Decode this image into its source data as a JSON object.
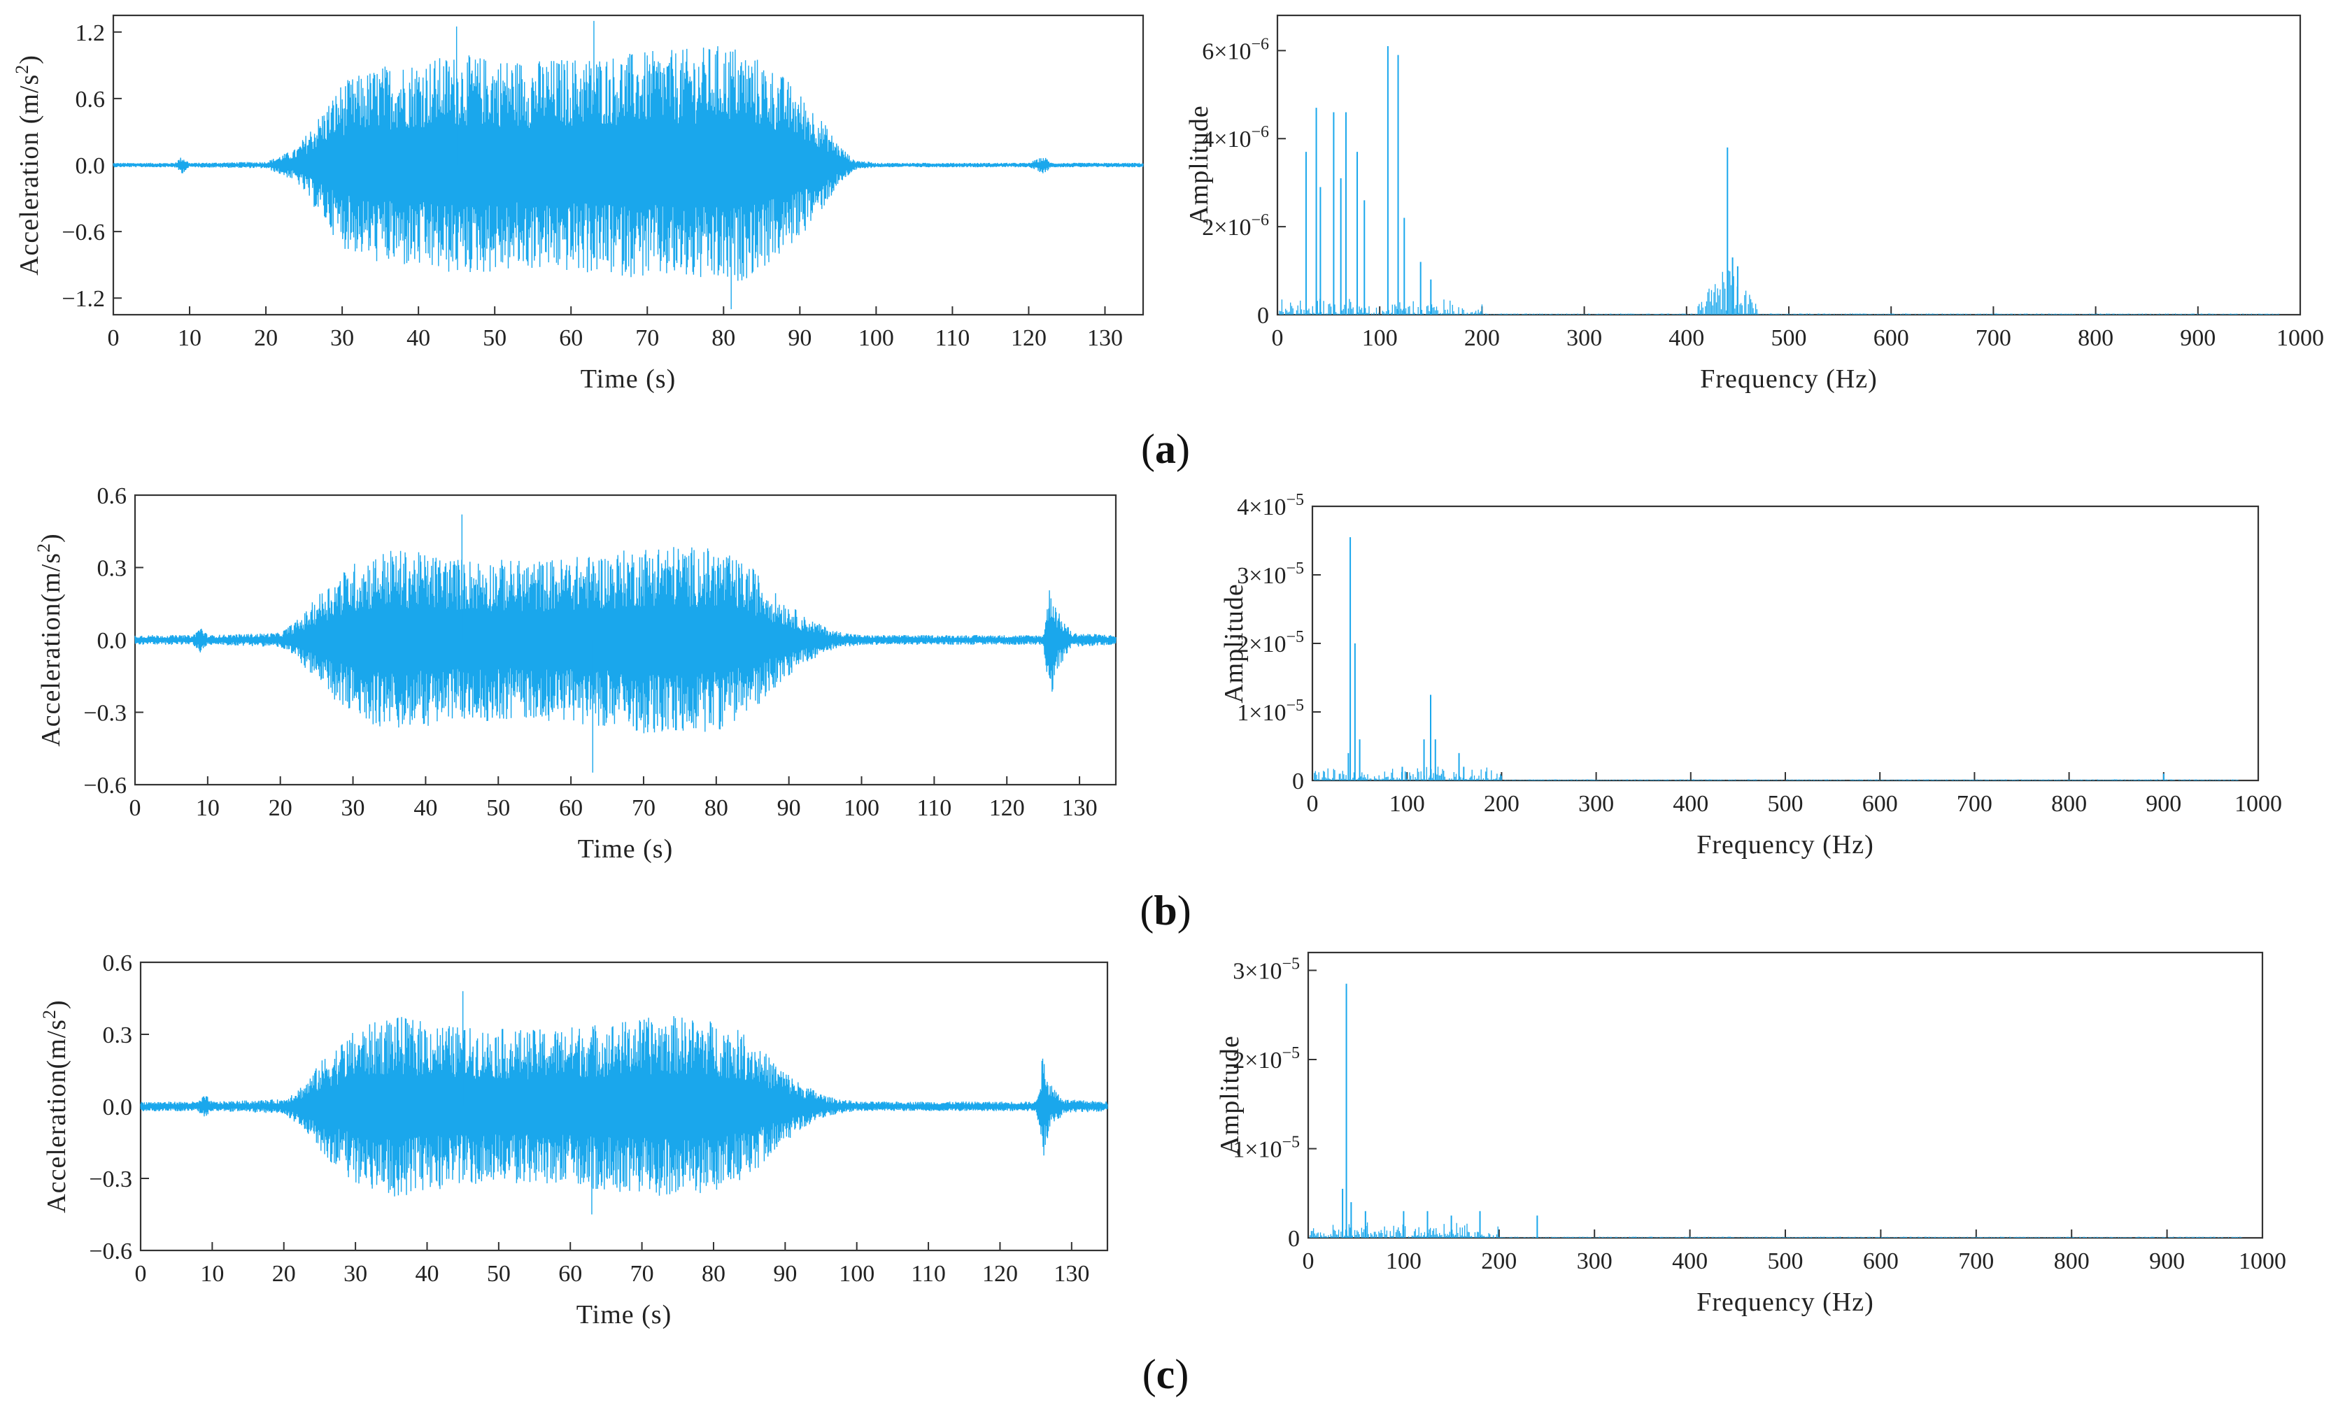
{
  "panel_labels": [
    "(a)",
    "(b)",
    "(c)"
  ],
  "colors": {
    "signal": "#1aa7ec",
    "axis": "#333333"
  },
  "chart_data": [
    {
      "type": "line",
      "panel": "(a)",
      "xlabel": "Time (s)",
      "ylabel": "Acceleration (m/s²)",
      "ylabel_main": "Acceleration (m/s",
      "ylabel_sup": "2",
      "ylabel_tail": ")",
      "xlim": [
        0,
        135
      ],
      "ylim": [
        -1.35,
        1.35
      ],
      "xticks": [
        0,
        10,
        20,
        30,
        40,
        50,
        60,
        70,
        80,
        90,
        100,
        110,
        120,
        130
      ],
      "xtick_labels": [
        "0",
        "10",
        "20",
        "30",
        "40",
        "50",
        "60",
        "70",
        "80",
        "90",
        "100",
        "110",
        "120",
        "130"
      ],
      "yticks": [
        -1.2,
        -0.6,
        0,
        0.6,
        1.2
      ],
      "ytick_labels": [
        "−1.2",
        "−0.6",
        "0.0",
        "0.6",
        "1.2"
      ],
      "grid": false,
      "series": [
        {
          "envelope": {
            "x": [
              0,
              8,
              9,
              10,
              20,
              24,
              27,
              30,
              35,
              45,
              55,
              65,
              75,
              81,
              85,
              88,
              92,
              95,
              97,
              100,
              120,
              122,
              123,
              124,
              135
            ],
            "amplitude": [
              0.02,
              0.02,
              0.08,
              0.02,
              0.03,
              0.15,
              0.45,
              0.75,
              0.9,
              1.0,
              0.95,
              1.0,
              1.05,
              1.1,
              0.95,
              0.8,
              0.5,
              0.2,
              0.05,
              0.02,
              0.02,
              0.08,
              0.02,
              0.02,
              0.02
            ],
            "peaks": [
              1.25,
              1.3,
              -1.3
            ]
          }
        }
      ]
    },
    {
      "type": "bar",
      "panel": "(a)",
      "xlabel": "Frequency (Hz)",
      "ylabel": "Amplitude",
      "xlim": [
        0,
        1000
      ],
      "ylim": [
        0,
        6.8e-06
      ],
      "xticks": [
        0,
        100,
        200,
        300,
        400,
        500,
        600,
        700,
        800,
        900,
        1000
      ],
      "xtick_labels": [
        "0",
        "100",
        "200",
        "300",
        "400",
        "500",
        "600",
        "700",
        "800",
        "900",
        "1000"
      ],
      "yticks": [
        0,
        2e-06,
        4e-06,
        6e-06
      ],
      "ytick_labels": [
        {
          "mant": "0",
          "exp": ""
        },
        {
          "mant": "2×10",
          "exp": "−6"
        },
        {
          "mant": "4×10",
          "exp": "−6"
        },
        {
          "mant": "6×10",
          "exp": "−6"
        }
      ],
      "grid": false,
      "series": [
        {
          "peaks": [
            [
              28,
              3.7e-06
            ],
            [
              38,
              4.7e-06
            ],
            [
              42,
              2.9e-06
            ],
            [
              55,
              4.6e-06
            ],
            [
              62,
              3.1e-06
            ],
            [
              67,
              4.6e-06
            ],
            [
              78,
              3.7e-06
            ],
            [
              85,
              2.6e-06
            ],
            [
              108,
              6.1e-06
            ],
            [
              118,
              5.9e-06
            ],
            [
              124,
              2.2e-06
            ],
            [
              140,
              1.2e-06
            ],
            [
              150,
              8e-07
            ],
            [
              440,
              3.8e-06
            ],
            [
              445,
              1.3e-06
            ],
            [
              450,
              1.1e-06
            ]
          ]
        }
      ]
    },
    {
      "type": "line",
      "panel": "(b)",
      "xlabel": "Time (s)",
      "ylabel": "Acceleration(m/s²)",
      "ylabel_main": "Acceleration(m/s",
      "ylabel_sup": "2",
      "ylabel_tail": ")",
      "xlim": [
        0,
        135
      ],
      "ylim": [
        -0.6,
        0.6
      ],
      "xticks": [
        0,
        10,
        20,
        30,
        40,
        50,
        60,
        70,
        80,
        90,
        100,
        110,
        120,
        130
      ],
      "xtick_labels": [
        "0",
        "10",
        "20",
        "30",
        "40",
        "50",
        "60",
        "70",
        "80",
        "90",
        "100",
        "110",
        "120",
        "130"
      ],
      "yticks": [
        -0.6,
        -0.3,
        0,
        0.3,
        0.6
      ],
      "ytick_labels": [
        "−0.6",
        "−0.3",
        "0.0",
        "0.3",
        "0.6"
      ],
      "grid": false,
      "series": [
        {
          "envelope": {
            "x": [
              0,
              8,
              9,
              10,
              20,
              23,
              26,
              30,
              35,
              45,
              55,
              65,
              72,
              80,
              85,
              88,
              92,
              96,
              100,
              125,
              126,
              127,
              129,
              135
            ],
            "amplitude": [
              0.02,
              0.02,
              0.06,
              0.02,
              0.03,
              0.1,
              0.22,
              0.32,
              0.38,
              0.34,
              0.33,
              0.36,
              0.4,
              0.38,
              0.3,
              0.2,
              0.1,
              0.04,
              0.02,
              0.02,
              0.25,
              0.12,
              0.03,
              0.02
            ],
            "peaks": [
              0.52,
              -0.55
            ]
          }
        }
      ]
    },
    {
      "type": "bar",
      "panel": "(b)",
      "xlabel": "Frequency (Hz)",
      "ylabel": "Amplitude",
      "xlim": [
        0,
        1000
      ],
      "ylim": [
        0,
        4e-05
      ],
      "xticks": [
        0,
        100,
        200,
        300,
        400,
        500,
        600,
        700,
        800,
        900,
        1000
      ],
      "xtick_labels": [
        "0",
        "100",
        "200",
        "300",
        "400",
        "500",
        "600",
        "700",
        "800",
        "900",
        "1000"
      ],
      "yticks": [
        0,
        1e-05,
        2e-05,
        3e-05,
        4e-05
      ],
      "ytick_labels": [
        {
          "mant": "0",
          "exp": ""
        },
        {
          "mant": "1×10",
          "exp": "−5"
        },
        {
          "mant": "2×10",
          "exp": "−5"
        },
        {
          "mant": "3×10",
          "exp": "−5"
        },
        {
          "mant": "4×10",
          "exp": "−5"
        }
      ],
      "grid": false,
      "series": [
        {
          "peaks": [
            [
              40,
              3.55e-05
            ],
            [
              45,
              2e-05
            ],
            [
              50,
              6e-06
            ],
            [
              38,
              4e-06
            ],
            [
              95,
              2e-06
            ],
            [
              118,
              6e-06
            ],
            [
              125,
              1.25e-05
            ],
            [
              130,
              6e-06
            ],
            [
              155,
              4e-06
            ],
            [
              160,
              2e-06
            ],
            [
              900,
              1e-06
            ]
          ]
        }
      ]
    },
    {
      "type": "line",
      "panel": "(c)",
      "xlabel": "Time (s)",
      "ylabel": "Acceleration(m/s²)",
      "ylabel_main": "Acceleration(m/s",
      "ylabel_sup": "2",
      "ylabel_tail": ")",
      "xlim": [
        0,
        135
      ],
      "ylim": [
        -0.6,
        0.6
      ],
      "xticks": [
        0,
        10,
        20,
        30,
        40,
        50,
        60,
        70,
        80,
        90,
        100,
        110,
        120,
        130
      ],
      "xtick_labels": [
        "0",
        "10",
        "20",
        "30",
        "40",
        "50",
        "60",
        "70",
        "80",
        "90",
        "100",
        "110",
        "120",
        "130"
      ],
      "yticks": [
        -0.6,
        -0.3,
        0,
        0.3,
        0.6
      ],
      "ytick_labels": [
        "−0.6",
        "−0.3",
        "0.0",
        "0.3",
        "0.6"
      ],
      "grid": false,
      "series": [
        {
          "envelope": {
            "x": [
              0,
              8,
              9,
              10,
              20,
              23,
              26,
              30,
              35,
              45,
              55,
              65,
              74,
              80,
              85,
              88,
              92,
              96,
              100,
              125,
              126,
              127,
              129,
              135
            ],
            "amplitude": [
              0.02,
              0.02,
              0.05,
              0.02,
              0.03,
              0.1,
              0.22,
              0.32,
              0.38,
              0.33,
              0.32,
              0.35,
              0.38,
              0.36,
              0.3,
              0.2,
              0.1,
              0.04,
              0.02,
              0.02,
              0.22,
              0.1,
              0.03,
              0.02
            ],
            "peaks": [
              0.48,
              -0.45
            ]
          }
        }
      ]
    },
    {
      "type": "bar",
      "panel": "(c)",
      "xlabel": "Frequency (Hz)",
      "ylabel": "Amplitude",
      "xlim": [
        0,
        1000
      ],
      "ylim": [
        0,
        3.2e-05
      ],
      "xticks": [
        0,
        100,
        200,
        300,
        400,
        500,
        600,
        700,
        800,
        900,
        1000
      ],
      "xtick_labels": [
        "0",
        "100",
        "200",
        "300",
        "400",
        "500",
        "600",
        "700",
        "800",
        "900",
        "1000"
      ],
      "yticks": [
        0,
        1e-05,
        2e-05,
        3e-05
      ],
      "ytick_labels": [
        {
          "mant": "0",
          "exp": ""
        },
        {
          "mant": "1×10",
          "exp": "−5"
        },
        {
          "mant": "2×10",
          "exp": "−5"
        },
        {
          "mant": "3×10",
          "exp": "−5"
        }
      ],
      "grid": false,
      "series": [
        {
          "peaks": [
            [
              40,
              2.85e-05
            ],
            [
              36,
              5.5e-06
            ],
            [
              45,
              4e-06
            ],
            [
              60,
              3e-06
            ],
            [
              100,
              3e-06
            ],
            [
              125,
              3e-06
            ],
            [
              150,
              2.5e-06
            ],
            [
              180,
              3e-06
            ],
            [
              240,
              2.5e-06
            ]
          ]
        }
      ]
    }
  ]
}
